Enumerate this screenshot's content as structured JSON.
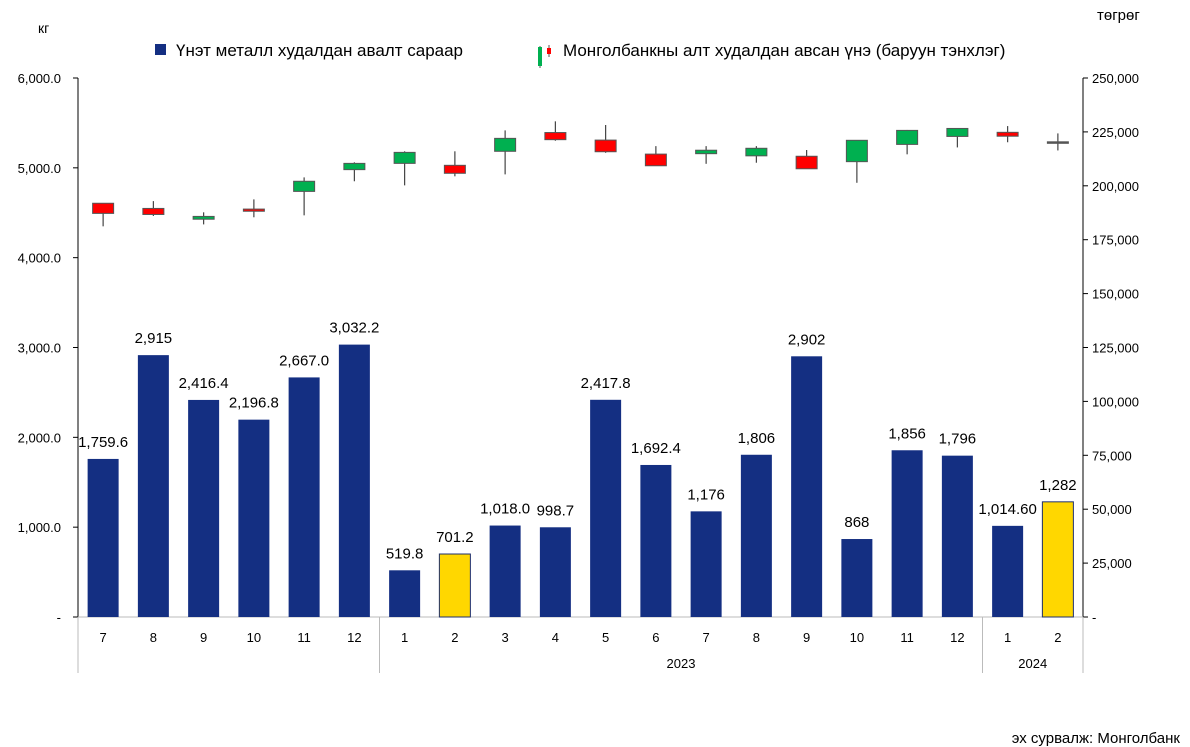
{
  "chart_data": {
    "type": "bar+candlestick",
    "left_axis_unit": "кг",
    "right_axis_unit": "төгрөг",
    "left_ylim": [
      0,
      6000
    ],
    "right_ylim": [
      0,
      250000
    ],
    "left_ticks": [
      "-",
      "1,000.0",
      "2,000.0",
      "3,000.0",
      "4,000.0",
      "5,000.0",
      "6,000.0"
    ],
    "left_tick_values": [
      0,
      1000,
      2000,
      3000,
      4000,
      5000,
      6000
    ],
    "right_ticks": [
      "-",
      "25,000",
      "50,000",
      "75,000",
      "100,000",
      "125,000",
      "150,000",
      "175,000",
      "200,000",
      "225,000",
      "250,000"
    ],
    "right_tick_values": [
      0,
      25000,
      50000,
      75000,
      100000,
      125000,
      150000,
      175000,
      200000,
      225000,
      250000
    ],
    "categories": [
      "7",
      "8",
      "9",
      "10",
      "11",
      "12",
      "1",
      "2",
      "3",
      "4",
      "5",
      "6",
      "7",
      "8",
      "9",
      "10",
      "11",
      "12",
      "1",
      "2"
    ],
    "year_groups": [
      {
        "label": "",
        "count": 6
      },
      {
        "label": "2023",
        "count": 12
      },
      {
        "label": "2024",
        "count": 2
      }
    ],
    "legend_placement": "top",
    "grid": false,
    "series": [
      {
        "name": "Үнэт металл худалдан авалт сараар",
        "type": "bar",
        "axis": "left",
        "color": "#142f82",
        "highlight_color": "#ffd700",
        "highlight_indices": [
          7,
          19
        ],
        "values": [
          1759.6,
          2915,
          2416.4,
          2196.8,
          2667.0,
          3032.2,
          519.8,
          701.2,
          1018.0,
          998.7,
          2417.8,
          1692.4,
          1176,
          1806,
          2902,
          868,
          1856,
          1796,
          1014.6,
          1282
        ],
        "labels": [
          "1,759.6",
          "2,915",
          "2,416.4",
          "2,196.8",
          "2,667.0",
          "3,032.2",
          "519.8",
          "701.2",
          "1,018.0",
          "998.7",
          "2,417.8",
          "1,692.4",
          "1,176",
          "1,806",
          "2,902",
          "868",
          "1,856",
          "1,796",
          "1,014.60",
          "1,282"
        ]
      },
      {
        "name": "Монголбанкны алт худалдан авсан үнэ (баруун тэнхлэг)",
        "type": "candlestick",
        "axis": "right",
        "up_color": "#00b050",
        "down_color": "#ff0000",
        "ohlc": [
          [
            191900,
            191900,
            181200,
            187200
          ],
          [
            189500,
            192900,
            186000,
            186700
          ],
          [
            184500,
            187700,
            182100,
            185800
          ],
          [
            189200,
            193700,
            185400,
            188200
          ],
          [
            197400,
            203900,
            186300,
            202100
          ],
          [
            207500,
            210900,
            202100,
            210400
          ],
          [
            210400,
            216000,
            200200,
            215500
          ],
          [
            209500,
            216000,
            204400,
            205800
          ],
          [
            216000,
            225700,
            205300,
            222000
          ],
          [
            224700,
            229900,
            220900,
            221400
          ],
          [
            221200,
            228200,
            215300,
            215800
          ],
          [
            214700,
            218400,
            209300,
            209300
          ],
          [
            214900,
            218400,
            210200,
            216500
          ],
          [
            213900,
            218400,
            210700,
            217400
          ],
          [
            213700,
            216600,
            207800,
            207900
          ],
          [
            211200,
            221200,
            201400,
            221100
          ],
          [
            219200,
            225900,
            214600,
            225700
          ],
          [
            222900,
            226600,
            217800,
            226600
          ],
          [
            224800,
            227700,
            220200,
            223000
          ],
          [
            220400,
            224300,
            216400,
            220400
          ]
        ]
      }
    ],
    "source": "эх сурвалж: Монголбанк"
  }
}
